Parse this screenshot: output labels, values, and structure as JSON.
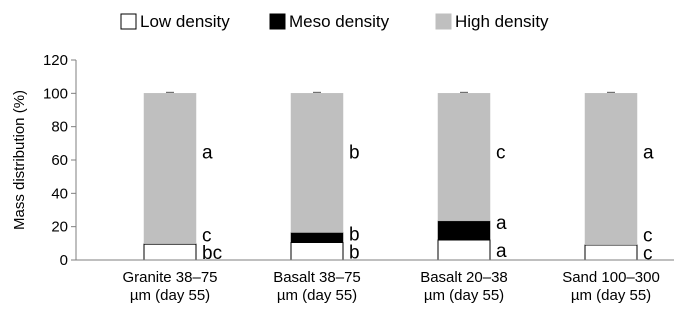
{
  "chart_data": {
    "type": "bar",
    "stacked": true,
    "title": "",
    "xlabel": "",
    "ylabel": "Mass distribution (%)",
    "ylim": [
      0,
      120
    ],
    "yticks": [
      0,
      20,
      40,
      60,
      80,
      100,
      120
    ],
    "grid": false,
    "legend_position": "top",
    "categories": [
      [
        "Granite 38–75",
        "µm (day 55)"
      ],
      [
        "Basalt 38–75",
        "µm (day 55)"
      ],
      [
        "Basalt 20–38",
        "µm (day 55)"
      ],
      [
        "Sand 100–300",
        "µm (day 55)"
      ]
    ],
    "series": [
      {
        "name": "Low density",
        "color": "#ffffff",
        "values": [
          9.5,
          10.5,
          12,
          9
        ],
        "letters": [
          "bc",
          "b",
          "a",
          "c"
        ]
      },
      {
        "name": "Meso density",
        "color": "#000000",
        "values": [
          0.3,
          6,
          11.5,
          0.2
        ],
        "letters": [
          "c",
          "b",
          "a",
          "c"
        ]
      },
      {
        "name": "High density",
        "color": "#bfbfbf",
        "values": [
          90.2,
          83.5,
          76.5,
          90.8
        ],
        "letters": [
          "a",
          "b",
          "c",
          "a"
        ]
      }
    ]
  }
}
